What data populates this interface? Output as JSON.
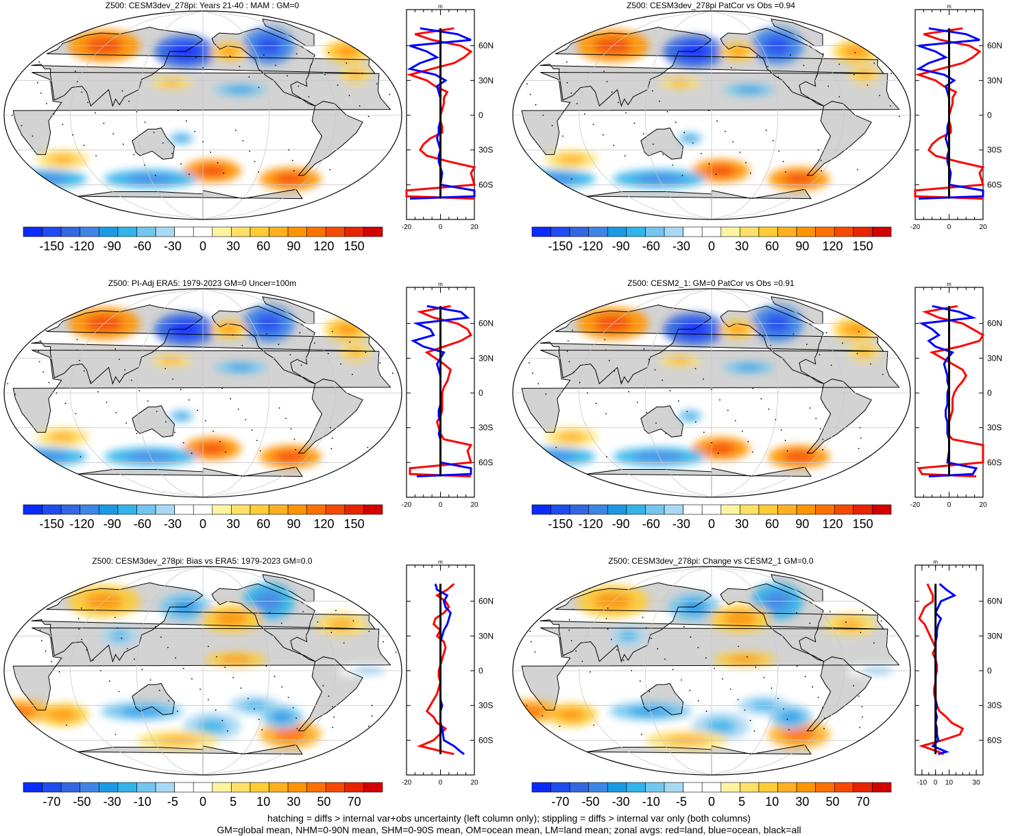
{
  "footnote": {
    "line1": "hatching = diffs > internal var+obs uncertainty (left column only); stippling = diffs > internal var only (both columns)",
    "line2": "GM=global mean, NHM=0-90N mean, SHM=0-90S mean, OM=ocean mean, LM=land mean; zonal avgs: red=land, blue=ocean, black=all"
  },
  "colors": {
    "land": "#d3d3d3",
    "ocean_line": "#0000ff",
    "land_line": "#ff0000",
    "all_line": "#000000"
  },
  "colorbar_full": {
    "colors": [
      "#0a2bff",
      "#1f4cf0",
      "#3366e0",
      "#3d85e6",
      "#1a9ae6",
      "#30b4ea",
      "#73c6ee",
      "#a8d8f4",
      "#ffffff",
      "#ffffff",
      "#fff3a0",
      "#ffe066",
      "#ffcc33",
      "#ffb020",
      "#ff9400",
      "#ff7000",
      "#f64a00",
      "#e82400",
      "#d40000"
    ],
    "labels": [
      "-150",
      "-120",
      "-90",
      "-60",
      "-30",
      "0",
      "30",
      "60",
      "90",
      "120",
      "150"
    ]
  },
  "colorbar_diff": {
    "colors": [
      "#0a2bff",
      "#1f4cf0",
      "#3366e0",
      "#3d85e6",
      "#1a9ae6",
      "#30b4ea",
      "#73c6ee",
      "#a8d8f4",
      "#ffffff",
      "#ffffff",
      "#fff3a0",
      "#ffe066",
      "#ffcc33",
      "#ffb020",
      "#ff9400",
      "#ff7000",
      "#f64a00",
      "#e82400",
      "#d40000"
    ],
    "labels": [
      "-70",
      "-50",
      "-30",
      "-10",
      "-5",
      "0",
      "5",
      "10",
      "30",
      "50",
      "70"
    ]
  },
  "chart_data": [
    {
      "type": "heatmap",
      "title": "Z500: CESM3dev_278pi: Years 21-40 : MAM : GM=0",
      "zonal_axis": {
        "ylabels": [
          "60N",
          "30N",
          "0",
          "30S",
          "60S"
        ],
        "xticks": [
          "-20",
          "0",
          "20"
        ],
        "xlim": [
          -20,
          20
        ],
        "units": "m"
      },
      "series": [
        {
          "name": "land",
          "lat": [
            75,
            70,
            65,
            60,
            55,
            50,
            45,
            40,
            35,
            30,
            25,
            20,
            15,
            10,
            5,
            0,
            -5,
            -10,
            -15,
            -20,
            -25,
            -30,
            -35,
            -40,
            -45,
            -50,
            -60,
            -65,
            -70,
            -72
          ],
          "values": [
            8,
            -15,
            -5,
            12,
            18,
            14,
            8,
            -5,
            -18,
            -8,
            -3,
            4,
            2,
            2,
            1,
            0,
            0,
            1,
            1,
            -6,
            -10,
            -12,
            -8,
            5,
            20,
            18,
            22,
            -20,
            -20,
            22
          ]
        },
        {
          "name": "ocean",
          "lat": [
            75,
            70,
            65,
            60,
            55,
            50,
            45,
            40,
            35,
            30,
            25,
            20,
            15,
            10,
            5,
            0,
            -5,
            -10,
            -15,
            -20,
            -25,
            -30,
            -35,
            -40,
            -45,
            -50,
            -60,
            -65,
            -70,
            -72
          ],
          "values": [
            -12,
            10,
            18,
            -18,
            -8,
            -2,
            -12,
            -18,
            -3,
            3,
            -2,
            -1,
            0,
            0,
            0,
            0,
            0,
            -1,
            -1,
            -2,
            -1,
            0,
            -1,
            -1,
            0,
            1,
            0,
            20,
            20,
            -18
          ]
        },
        {
          "name": "all",
          "lat": [
            75,
            -72
          ],
          "values": [
            0,
            0
          ]
        }
      ]
    },
    {
      "type": "heatmap",
      "title": "Z500: CESM3dev_278pi PatCor vs Obs =0.94",
      "zonal_axis": {
        "ylabels": [
          "60N",
          "30N",
          "0",
          "30S",
          "60S"
        ],
        "xticks": [
          "-20",
          "0",
          "20"
        ],
        "xlim": [
          -20,
          20
        ],
        "units": "m"
      },
      "series": [
        {
          "name": "land",
          "lat": [
            75,
            70,
            65,
            60,
            55,
            50,
            45,
            40,
            35,
            30,
            25,
            20,
            15,
            10,
            5,
            0,
            -5,
            -10,
            -15,
            -20,
            -25,
            -30,
            -35,
            -40,
            -45,
            -50,
            -60,
            -65,
            -70,
            -72
          ],
          "values": [
            8,
            -15,
            -5,
            12,
            18,
            14,
            8,
            -5,
            -18,
            -8,
            -3,
            4,
            2,
            2,
            1,
            0,
            0,
            1,
            1,
            -6,
            -10,
            -12,
            -8,
            5,
            20,
            18,
            22,
            -20,
            -20,
            22
          ]
        },
        {
          "name": "ocean",
          "lat": [
            75,
            70,
            65,
            60,
            55,
            50,
            45,
            40,
            35,
            30,
            25,
            20,
            15,
            10,
            5,
            0,
            -5,
            -10,
            -15,
            -20,
            -25,
            -30,
            -35,
            -40,
            -45,
            -50,
            -60,
            -65,
            -70,
            -72
          ],
          "values": [
            -12,
            10,
            18,
            -18,
            -8,
            -2,
            -12,
            -18,
            -3,
            3,
            -2,
            -1,
            0,
            0,
            0,
            0,
            0,
            -1,
            -1,
            -2,
            -1,
            0,
            -1,
            -1,
            0,
            1,
            0,
            20,
            20,
            -18
          ]
        },
        {
          "name": "all",
          "lat": [
            75,
            -72
          ],
          "values": [
            0,
            0
          ]
        }
      ]
    },
    {
      "type": "heatmap",
      "title": "Z500: PI-Adj ERA5: 1979-2023 GM=0 Uncer=100m",
      "zonal_axis": {
        "ylabels": [
          "60N",
          "30N",
          "0",
          "30S",
          "60S"
        ],
        "xticks": [
          "-20",
          "0",
          "20"
        ],
        "xlim": [
          -20,
          20
        ],
        "units": "m"
      },
      "series": [
        {
          "name": "land",
          "lat": [
            75,
            70,
            65,
            60,
            55,
            50,
            45,
            40,
            35,
            30,
            25,
            20,
            15,
            10,
            5,
            0,
            -5,
            -10,
            -15,
            -20,
            -25,
            -30,
            -35,
            -40,
            -45,
            -50,
            -60,
            -65,
            -70,
            -72
          ],
          "values": [
            6,
            -12,
            -4,
            10,
            16,
            18,
            12,
            2,
            -8,
            -3,
            2,
            6,
            5,
            4,
            2,
            1,
            1,
            1,
            1,
            0,
            -2,
            -1,
            0,
            2,
            18,
            16,
            18,
            -18,
            -18,
            18
          ]
        },
        {
          "name": "ocean",
          "lat": [
            75,
            70,
            65,
            60,
            55,
            50,
            45,
            40,
            35,
            30,
            25,
            20,
            15,
            10,
            5,
            0,
            -5,
            -10,
            -15,
            -20,
            -25,
            -30,
            -35,
            -40,
            -45,
            -50,
            -60,
            -65,
            -70,
            -72
          ],
          "values": [
            -8,
            12,
            16,
            -14,
            -6,
            -4,
            -16,
            -10,
            2,
            0,
            -2,
            -1,
            0,
            0,
            0,
            0,
            0,
            0,
            -1,
            -1,
            0,
            0,
            -1,
            0,
            0,
            0,
            0,
            18,
            18,
            -14
          ]
        },
        {
          "name": "all",
          "lat": [
            75,
            -72
          ],
          "values": [
            0,
            0
          ]
        }
      ]
    },
    {
      "type": "heatmap",
      "title": "Z500: CESM2_1: GM=0 PatCor vs Obs =0.91",
      "zonal_axis": {
        "ylabels": [
          "60N",
          "30N",
          "0",
          "30S",
          "60S"
        ],
        "xticks": [
          "-20",
          "0",
          "20"
        ],
        "xlim": [
          -20,
          20
        ],
        "units": "m"
      },
      "series": [
        {
          "name": "land",
          "lat": [
            75,
            70,
            65,
            60,
            55,
            50,
            45,
            40,
            35,
            30,
            25,
            20,
            15,
            10,
            5,
            0,
            -5,
            -10,
            -15,
            -20,
            -25,
            -30,
            -35,
            -40,
            -45,
            -50,
            -60,
            -65,
            -70,
            -72
          ],
          "values": [
            5,
            -14,
            -6,
            8,
            14,
            20,
            18,
            6,
            -10,
            -4,
            2,
            8,
            10,
            8,
            5,
            3,
            2,
            2,
            2,
            1,
            0,
            0,
            -1,
            2,
            20,
            20,
            22,
            -18,
            -16,
            16
          ]
        },
        {
          "name": "ocean",
          "lat": [
            75,
            70,
            65,
            60,
            55,
            50,
            45,
            40,
            35,
            30,
            25,
            20,
            15,
            10,
            5,
            0,
            -5,
            -10,
            -15,
            -20,
            -25,
            -30,
            -35,
            -40,
            -45,
            -50,
            -60,
            -65,
            -70,
            -72
          ],
          "values": [
            -10,
            6,
            14,
            -16,
            -10,
            -6,
            -12,
            -8,
            2,
            -1,
            -3,
            -2,
            -1,
            -1,
            0,
            -1,
            -1,
            -1,
            -2,
            -2,
            -1,
            -1,
            -1,
            0,
            0,
            0,
            -1,
            16,
            14,
            -12
          ]
        },
        {
          "name": "all",
          "lat": [
            75,
            -72
          ],
          "values": [
            0,
            0
          ]
        }
      ]
    },
    {
      "type": "heatmap",
      "title": "Z500: CESM3dev_278pi: Bias vs ERA5: 1979-2023 GM=0.0",
      "zonal_axis": {
        "ylabels": [
          "60N",
          "30N",
          "0",
          "30S",
          "60S"
        ],
        "xticks": [
          "-20",
          "0",
          "20"
        ],
        "xlim": [
          -20,
          20
        ],
        "units": "m"
      },
      "series": [
        {
          "name": "land",
          "lat": [
            75,
            70,
            65,
            60,
            55,
            50,
            45,
            40,
            35,
            30,
            25,
            20,
            15,
            10,
            5,
            0,
            -5,
            -10,
            -15,
            -20,
            -25,
            -30,
            -35,
            -40,
            -45,
            -50,
            -60,
            -65,
            -70,
            -72
          ],
          "values": [
            8,
            4,
            -2,
            3,
            5,
            2,
            -3,
            -4,
            0,
            -2,
            2,
            3,
            2,
            1,
            0,
            -1,
            -1,
            0,
            -1,
            -2,
            -4,
            -6,
            -8,
            -4,
            -2,
            3,
            -4,
            -12,
            2,
            8
          ]
        },
        {
          "name": "ocean",
          "lat": [
            75,
            70,
            65,
            60,
            55,
            50,
            45,
            40,
            35,
            30,
            25,
            20,
            15,
            10,
            5,
            0,
            -5,
            -10,
            -15,
            -20,
            -25,
            -30,
            -35,
            -40,
            -45,
            -50,
            -60,
            -65,
            -70,
            -72
          ],
          "values": [
            -3,
            -2,
            4,
            2,
            3,
            6,
            5,
            4,
            2,
            1,
            0,
            0,
            0,
            0,
            0,
            0,
            0,
            0,
            0,
            0,
            0,
            1,
            0,
            0,
            0,
            1,
            2,
            8,
            12,
            14
          ]
        },
        {
          "name": "all",
          "lat": [
            75,
            -72
          ],
          "values": [
            0,
            0
          ]
        }
      ]
    },
    {
      "type": "heatmap",
      "title": "Z500: CESM3dev_278pi: Change vs CESM2_1 GM=0.0",
      "zonal_axis": {
        "ylabels": [
          "60N",
          "30N",
          "0",
          "30S",
          "60S"
        ],
        "xticks": [
          "-10",
          "0",
          "10",
          "30"
        ],
        "xlim": [
          -15,
          35
        ],
        "units": "m"
      },
      "series": [
        {
          "name": "land",
          "lat": [
            75,
            70,
            65,
            60,
            55,
            50,
            45,
            40,
            35,
            30,
            25,
            20,
            15,
            10,
            5,
            0,
            -5,
            -10,
            -15,
            -20,
            -25,
            -30,
            -35,
            -40,
            -45,
            -50,
            -55,
            -60,
            -65,
            -70,
            -72
          ],
          "values": [
            -6,
            -4,
            -2,
            -2,
            -8,
            -10,
            -12,
            -8,
            -6,
            -4,
            -2,
            0,
            -2,
            0,
            1,
            1,
            0,
            0,
            -1,
            -1,
            0,
            1,
            3,
            8,
            12,
            20,
            18,
            5,
            -10,
            2,
            6
          ]
        },
        {
          "name": "ocean",
          "lat": [
            75,
            70,
            65,
            60,
            55,
            50,
            45,
            40,
            35,
            30,
            25,
            20,
            15,
            10,
            5,
            0,
            -5,
            -10,
            -15,
            -20,
            -25,
            -30,
            -35,
            -40,
            -45,
            -50,
            -55,
            -60,
            -65,
            -70,
            -72
          ],
          "values": [
            3,
            8,
            14,
            4,
            2,
            0,
            4,
            2,
            1,
            1,
            0,
            0,
            0,
            0,
            0,
            0,
            0,
            0,
            0,
            0,
            0,
            1,
            0,
            1,
            0,
            1,
            1,
            2,
            -2,
            8,
            2
          ]
        },
        {
          "name": "all",
          "lat": [
            75,
            -72
          ],
          "values": [
            0,
            0
          ]
        }
      ]
    }
  ]
}
